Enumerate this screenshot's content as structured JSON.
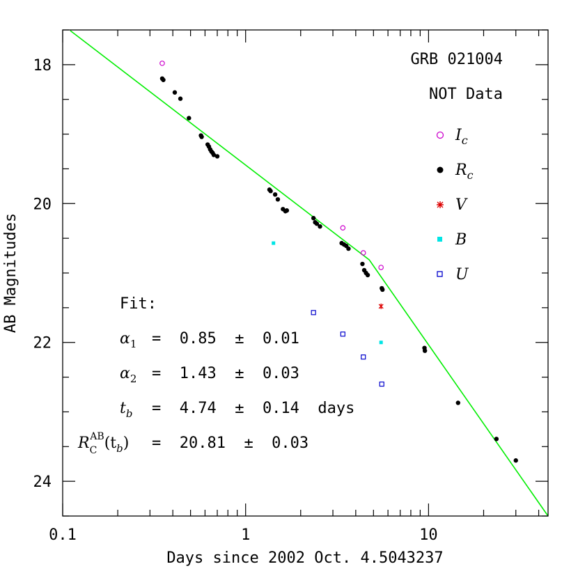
{
  "chart_data": {
    "type": "scatter",
    "xscale": "log",
    "xlim": [
      0.1,
      45
    ],
    "ylim": [
      24.5,
      17.5
    ],
    "ylim_note": "y axis inverted (brighter magnitudes at top)",
    "xlabel": "Days since 2002 Oct. 4.5043237",
    "ylabel": "AB Magnitudes",
    "x_tick_labels": [
      "0.1",
      "1",
      "10"
    ],
    "y_tick_labels": [
      "18",
      "20",
      "22",
      "24"
    ],
    "annotations": {
      "title": "GRB 021004",
      "subtitle": "NOT Data",
      "fit_header": "Fit:",
      "fit_lines": [
        {
          "symbol": "α",
          "sub": "1",
          "text": "=  0.85  ±  0.01"
        },
        {
          "symbol": "α",
          "sub": "2",
          "text": "=  1.43  ±  0.03"
        },
        {
          "symbol": "t",
          "sub": "b",
          "text": "=  4.74  ±  0.14  days"
        },
        {
          "symbol": "R",
          "sub": "C",
          "sup": "AB",
          "arg": "(t",
          "argsub": "b",
          "argclose": ")",
          "text": "=  20.81  ±  0.03"
        }
      ]
    },
    "legend": [
      {
        "name": "I",
        "sub": "c",
        "marker": "open-circle",
        "color": "#cc00cc"
      },
      {
        "name": "R",
        "sub": "c",
        "marker": "filled-circle",
        "color": "#000000"
      },
      {
        "name": "V",
        "sub": "",
        "marker": "star",
        "color": "#dd0000"
      },
      {
        "name": "B",
        "sub": "",
        "marker": "filled-square",
        "color": "#00e5e5"
      },
      {
        "name": "U",
        "sub": "",
        "marker": "open-square",
        "color": "#0000cc"
      }
    ],
    "fit_line": {
      "color": "#00ee00",
      "points": [
        [
          0.11,
          17.51
        ],
        [
          4.74,
          20.81
        ],
        [
          45,
          24.5
        ]
      ]
    },
    "series": [
      {
        "name": "Ic",
        "color": "#cc00cc",
        "marker": "open-circle",
        "points": [
          [
            0.35,
            17.98
          ],
          [
            3.4,
            20.35
          ],
          [
            4.4,
            20.71
          ],
          [
            5.5,
            20.92
          ]
        ]
      },
      {
        "name": "Rc",
        "color": "#000000",
        "marker": "filled-circle",
        "points": [
          [
            0.35,
            18.2
          ],
          [
            0.355,
            18.22
          ],
          [
            0.41,
            18.4
          ],
          [
            0.44,
            18.49
          ],
          [
            0.49,
            18.77
          ],
          [
            0.57,
            19.02
          ],
          [
            0.575,
            19.04
          ],
          [
            0.62,
            19.15
          ],
          [
            0.63,
            19.18
          ],
          [
            0.64,
            19.22
          ],
          [
            0.65,
            19.25
          ],
          [
            0.66,
            19.27
          ],
          [
            0.67,
            19.3
          ],
          [
            0.7,
            19.32
          ],
          [
            1.35,
            19.8
          ],
          [
            1.37,
            19.82
          ],
          [
            1.45,
            19.87
          ],
          [
            1.5,
            19.94
          ],
          [
            1.6,
            20.08
          ],
          [
            1.65,
            20.11
          ],
          [
            1.68,
            20.1
          ],
          [
            2.35,
            20.21
          ],
          [
            2.4,
            20.27
          ],
          [
            2.45,
            20.29
          ],
          [
            2.55,
            20.33
          ],
          [
            3.35,
            20.57
          ],
          [
            3.45,
            20.59
          ],
          [
            3.55,
            20.61
          ],
          [
            3.65,
            20.65
          ],
          [
            4.35,
            20.87
          ],
          [
            4.45,
            20.96
          ],
          [
            4.55,
            21.0
          ],
          [
            4.65,
            21.03
          ],
          [
            5.55,
            21.22
          ],
          [
            5.6,
            21.24
          ],
          [
            9.5,
            22.08
          ],
          [
            9.55,
            22.12
          ],
          [
            14.5,
            22.87
          ],
          [
            23.5,
            23.39
          ],
          [
            30.0,
            23.7
          ]
        ]
      },
      {
        "name": "V",
        "color": "#dd0000",
        "marker": "star",
        "points": [
          [
            5.5,
            21.48
          ]
        ]
      },
      {
        "name": "B",
        "color": "#00e5e5",
        "marker": "filled-square",
        "points": [
          [
            1.42,
            20.57
          ],
          [
            5.5,
            22.0
          ]
        ]
      },
      {
        "name": "U",
        "color": "#0000cc",
        "marker": "open-square",
        "points": [
          [
            2.35,
            21.57
          ],
          [
            3.4,
            21.88
          ],
          [
            4.4,
            22.21
          ],
          [
            5.55,
            22.6
          ]
        ]
      }
    ]
  }
}
